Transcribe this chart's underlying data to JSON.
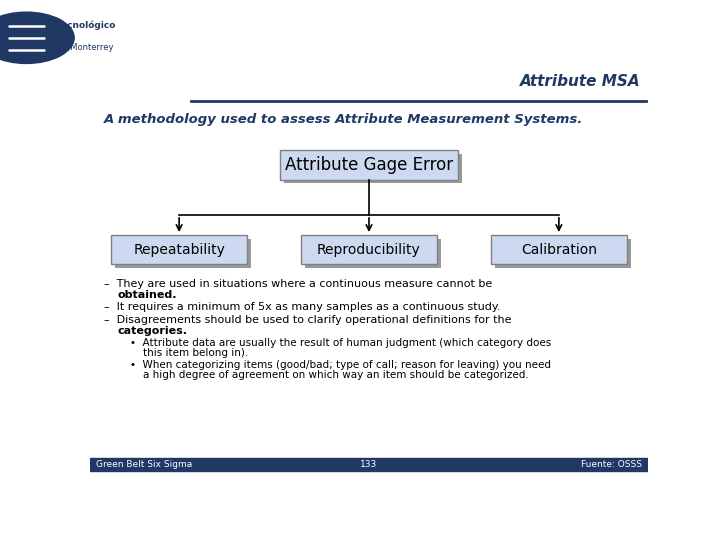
{
  "title": "Attribute MSA",
  "subtitle": "A methodology used to assess Attribute Measurement Systems.",
  "main_box": "Attribute Gage Error",
  "child_boxes": [
    "Repeatability",
    "Reproducibility",
    "Calibration"
  ],
  "footer_left": "Green Belt Six Sigma",
  "footer_center": "133",
  "footer_right": "Fuente: OSSS",
  "bg_color": "#ffffff",
  "box_fill_top": "#ccd9f0",
  "box_fill_bot": "#d0d0d0",
  "box_edge": "#808080",
  "title_color": "#1f3864",
  "subtitle_color": "#1f3864",
  "text_color": "#000000",
  "header_line_color": "#1f3864",
  "footer_bar_color": "#1f3864",
  "shadow_color": "#999999",
  "arrow_color": "#000000",
  "font_size_title": 11,
  "font_size_subtitle": 9.5,
  "font_size_main_box": 12,
  "font_size_child_box": 10,
  "font_size_bullet": 8,
  "font_size_sub_bullet": 7.5,
  "font_size_footer": 6.5,
  "logo_circle_color": "#1f3864",
  "logo_text_color": "#1f3864"
}
